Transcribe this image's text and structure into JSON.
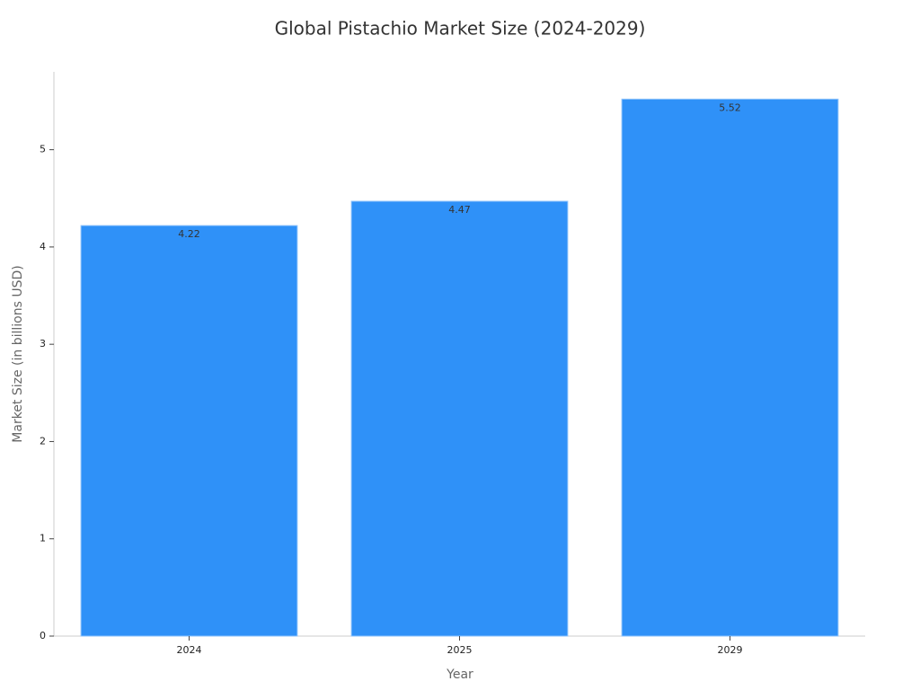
{
  "chart_data": {
    "type": "bar",
    "title": "Global Pistachio Market Size (2024-2029)",
    "x_label": "Year",
    "y_label": "Market Size (in billions USD)",
    "categories": [
      "2024",
      "2025",
      "2029"
    ],
    "values": [
      4.22,
      4.47,
      5.52
    ],
    "color": "#2f91f8",
    "ylim": [
      0,
      5.8
    ],
    "yticks": [
      0,
      1,
      2,
      3,
      4,
      5
    ],
    "grid": false
  }
}
